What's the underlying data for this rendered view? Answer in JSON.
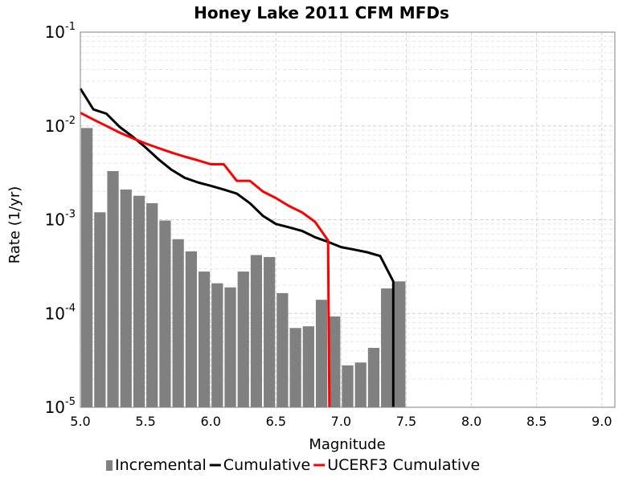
{
  "chart_data": {
    "type": "bar",
    "title": "Honey Lake 2011 CFM MFDs",
    "xlabel": "Magnitude",
    "ylabel": "Rate (1/yr)",
    "xlim": [
      5.0,
      9.1
    ],
    "ylim": [
      1e-05,
      0.1
    ],
    "yscale": "log",
    "grid": true,
    "legend_position": "bottom",
    "x_ticks": [
      "5.0",
      "5.5",
      "6.0",
      "6.5",
      "7.0",
      "7.5",
      "8.0",
      "8.5",
      "9.0"
    ],
    "y_ticks": [
      {
        "base": "10",
        "exp": "-5",
        "value": 1e-05
      },
      {
        "base": "10",
        "exp": "-4",
        "value": 0.0001
      },
      {
        "base": "10",
        "exp": "-3",
        "value": 0.001
      },
      {
        "base": "10",
        "exp": "-2",
        "value": 0.01
      },
      {
        "base": "10",
        "exp": "-1",
        "value": 0.1
      }
    ],
    "series": [
      {
        "name": "Incremental",
        "kind": "bar",
        "color": "#808080",
        "x": [
          5.05,
          5.15,
          5.25,
          5.35,
          5.45,
          5.55,
          5.65,
          5.75,
          5.85,
          5.95,
          6.05,
          6.15,
          6.25,
          6.35,
          6.45,
          6.55,
          6.65,
          6.75,
          6.85,
          6.95,
          7.05,
          7.15,
          7.25,
          7.35,
          7.45
        ],
        "values": [
          0.0095,
          0.0012,
          0.0033,
          0.0021,
          0.0018,
          0.0015,
          0.00098,
          0.00062,
          0.00046,
          0.00028,
          0.00021,
          0.00019,
          0.00028,
          0.00042,
          0.0004,
          0.000165,
          7e-05,
          7.3e-05,
          0.00014,
          9.3e-05,
          2.8e-05,
          3e-05,
          4.3e-05,
          0.000185,
          0.00022
        ]
      },
      {
        "name": "Cumulative",
        "kind": "line",
        "color": "#000000",
        "x": [
          5.0,
          5.1,
          5.2,
          5.3,
          5.4,
          5.5,
          5.6,
          5.7,
          5.8,
          5.9,
          6.0,
          6.1,
          6.2,
          6.3,
          6.4,
          6.5,
          6.6,
          6.7,
          6.8,
          6.9,
          7.0,
          7.1,
          7.2,
          7.3,
          7.4,
          7.4
        ],
        "values": [
          0.025,
          0.015,
          0.0135,
          0.0098,
          0.0077,
          0.0059,
          0.0044,
          0.0034,
          0.0028,
          0.0025,
          0.0023,
          0.0021,
          0.0019,
          0.0015,
          0.0011,
          0.0009,
          0.00083,
          0.00076,
          0.00065,
          0.00058,
          0.00051,
          0.00048,
          0.00045,
          0.00041,
          0.00022,
          1e-05
        ]
      },
      {
        "name": "UCERF3 Cumulative",
        "kind": "line",
        "color": "#ff0000",
        "x": [
          5.0,
          5.1,
          5.2,
          5.3,
          5.4,
          5.5,
          5.6,
          5.7,
          5.8,
          5.9,
          6.0,
          6.1,
          6.2,
          6.3,
          6.4,
          6.5,
          6.6,
          6.7,
          6.8,
          6.9,
          6.91
        ],
        "values": [
          0.0138,
          0.0117,
          0.01,
          0.0085,
          0.0074,
          0.0065,
          0.0058,
          0.0052,
          0.0047,
          0.0043,
          0.0039,
          0.0039,
          0.0026,
          0.0026,
          0.002,
          0.0017,
          0.0014,
          0.0012,
          0.00095,
          0.0006,
          1e-05
        ]
      }
    ]
  }
}
